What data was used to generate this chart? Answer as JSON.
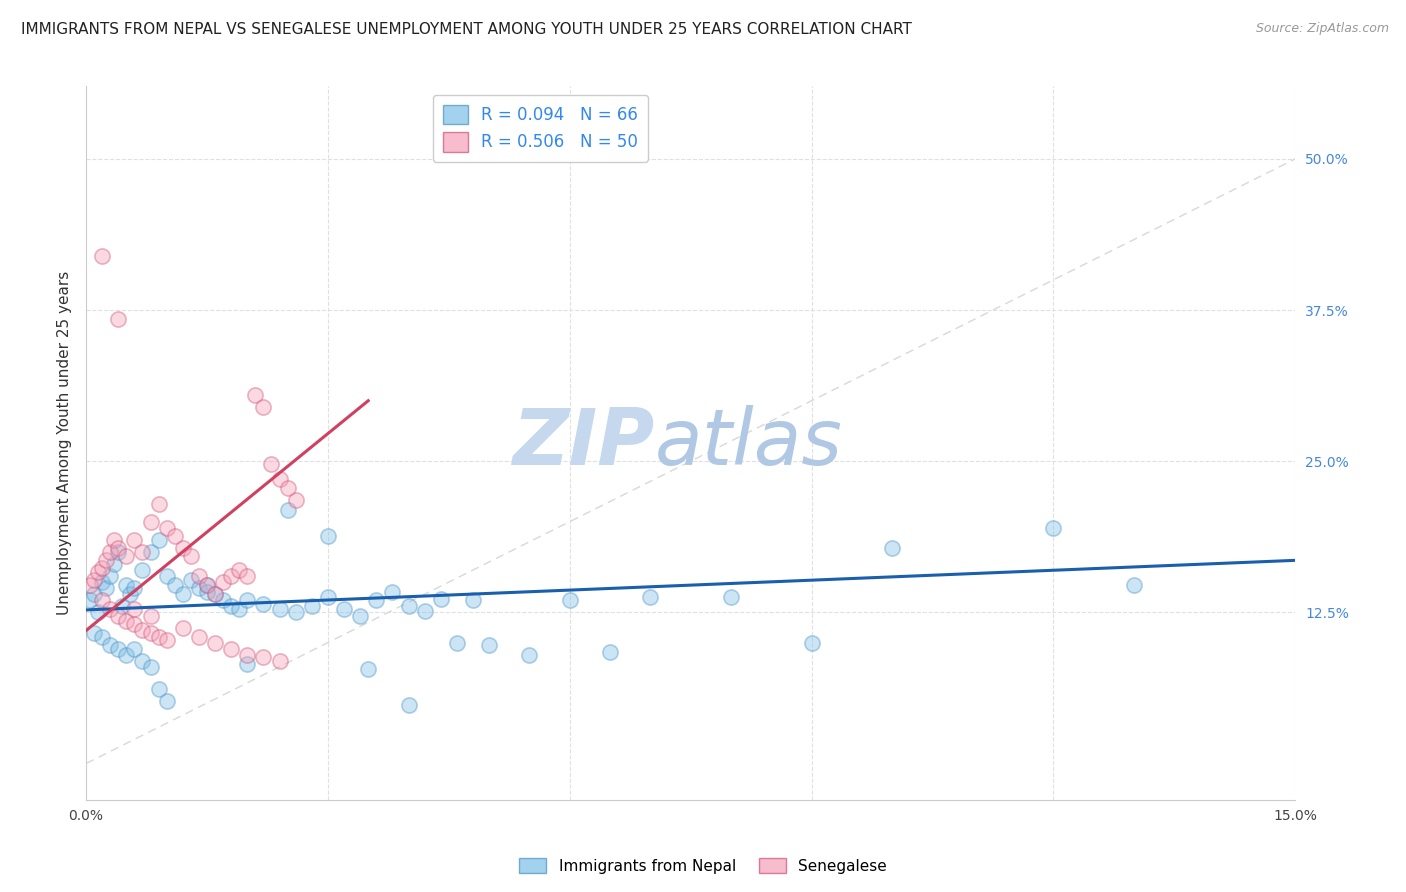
{
  "title": "IMMIGRANTS FROM NEPAL VS SENEGALESE UNEMPLOYMENT AMONG YOUTH UNDER 25 YEARS CORRELATION CHART",
  "source": "Source: ZipAtlas.com",
  "ylabel": "Unemployment Among Youth under 25 years",
  "xlim": [
    0.0,
    0.15
  ],
  "ylim": [
    -0.03,
    0.56
  ],
  "xticks": [
    0.0,
    0.03,
    0.06,
    0.09,
    0.12,
    0.15
  ],
  "xtick_labels": [
    "0.0%",
    "",
    "",
    "",
    "",
    "15.0%"
  ],
  "right_yticks": [
    0.125,
    0.25,
    0.375,
    0.5
  ],
  "right_ytick_labels": [
    "12.5%",
    "25.0%",
    "37.5%",
    "50.0%"
  ],
  "legend_entries": [
    {
      "label": "Immigrants from Nepal",
      "R": "0.094",
      "N": "66",
      "color": "#7dbfe8"
    },
    {
      "label": "Senegalese",
      "R": "0.506",
      "N": "50",
      "color": "#f5a0b8"
    }
  ],
  "watermark": "ZIPatlas",
  "nepal_scatter_x": [
    0.0005,
    0.001,
    0.0015,
    0.002,
    0.0025,
    0.003,
    0.0035,
    0.004,
    0.0045,
    0.005,
    0.0055,
    0.006,
    0.007,
    0.008,
    0.009,
    0.01,
    0.011,
    0.012,
    0.013,
    0.014,
    0.015,
    0.016,
    0.017,
    0.018,
    0.019,
    0.02,
    0.022,
    0.024,
    0.026,
    0.028,
    0.03,
    0.032,
    0.034,
    0.036,
    0.038,
    0.04,
    0.042,
    0.044,
    0.046,
    0.048,
    0.05,
    0.055,
    0.06,
    0.065,
    0.07,
    0.08,
    0.09,
    0.1,
    0.12,
    0.13,
    0.001,
    0.002,
    0.003,
    0.004,
    0.005,
    0.006,
    0.007,
    0.008,
    0.009,
    0.01,
    0.015,
    0.02,
    0.025,
    0.03,
    0.035,
    0.04
  ],
  "nepal_scatter_y": [
    0.135,
    0.14,
    0.125,
    0.15,
    0.145,
    0.155,
    0.165,
    0.175,
    0.13,
    0.148,
    0.14,
    0.145,
    0.16,
    0.175,
    0.185,
    0.155,
    0.148,
    0.14,
    0.152,
    0.145,
    0.148,
    0.14,
    0.135,
    0.13,
    0.128,
    0.135,
    0.132,
    0.128,
    0.125,
    0.13,
    0.138,
    0.128,
    0.122,
    0.135,
    0.142,
    0.13,
    0.126,
    0.136,
    0.1,
    0.135,
    0.098,
    0.09,
    0.135,
    0.092,
    0.138,
    0.138,
    0.1,
    0.178,
    0.195,
    0.148,
    0.108,
    0.105,
    0.098,
    0.095,
    0.09,
    0.095,
    0.085,
    0.08,
    0.062,
    0.052,
    0.142,
    0.082,
    0.21,
    0.188,
    0.078,
    0.048
  ],
  "senegal_scatter_x": [
    0.0005,
    0.001,
    0.0015,
    0.002,
    0.0025,
    0.003,
    0.0035,
    0.004,
    0.005,
    0.006,
    0.007,
    0.008,
    0.009,
    0.01,
    0.011,
    0.012,
    0.013,
    0.014,
    0.015,
    0.016,
    0.017,
    0.018,
    0.019,
    0.02,
    0.021,
    0.022,
    0.023,
    0.024,
    0.025,
    0.026,
    0.002,
    0.003,
    0.004,
    0.005,
    0.006,
    0.007,
    0.008,
    0.009,
    0.01,
    0.012,
    0.014,
    0.016,
    0.018,
    0.02,
    0.022,
    0.024,
    0.002,
    0.004,
    0.006,
    0.008
  ],
  "senegal_scatter_y": [
    0.148,
    0.152,
    0.158,
    0.162,
    0.168,
    0.175,
    0.185,
    0.178,
    0.172,
    0.185,
    0.175,
    0.2,
    0.215,
    0.195,
    0.188,
    0.178,
    0.172,
    0.155,
    0.148,
    0.14,
    0.15,
    0.155,
    0.16,
    0.155,
    0.305,
    0.295,
    0.248,
    0.235,
    0.228,
    0.218,
    0.135,
    0.128,
    0.122,
    0.118,
    0.115,
    0.11,
    0.108,
    0.105,
    0.102,
    0.112,
    0.105,
    0.1,
    0.095,
    0.09,
    0.088,
    0.085,
    0.42,
    0.368,
    0.128,
    0.122
  ],
  "blue_line_x": [
    0.0,
    0.15
  ],
  "blue_line_y": [
    0.127,
    0.168
  ],
  "pink_line_x": [
    0.0,
    0.035
  ],
  "pink_line_y": [
    0.11,
    0.3
  ],
  "ref_line_x": [
    0.0,
    0.15
  ],
  "ref_line_y": [
    0.0,
    0.5
  ],
  "title_fontsize": 11,
  "source_fontsize": 9,
  "axis_label_fontsize": 11,
  "tick_fontsize": 10,
  "scatter_size": 120,
  "scatter_alpha": 0.4,
  "scatter_linewidth": 1.2,
  "blue_color": "#7dbfe8",
  "blue_edge": "#4a90c4",
  "pink_color": "#f5a0b8",
  "pink_edge": "#d05075",
  "blue_line_color": "#1a5fad",
  "pink_line_color": "#d04060",
  "ref_line_color": "#d8d8d8",
  "grid_color": "#e0e0e0",
  "watermark_color": "#ccddf0"
}
